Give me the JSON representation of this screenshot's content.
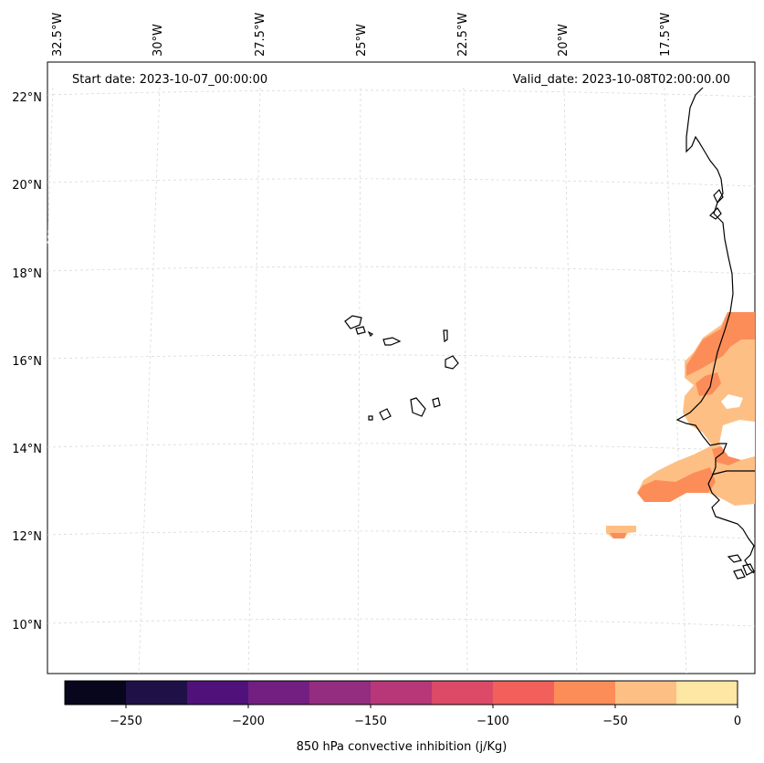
{
  "map": {
    "start_date_text": "Start date: 2023-10-07_00:00:00",
    "valid_date_text": "Valid_date: 2023-10-08T02:00:00.00",
    "lon_labels": [
      "32.5°W",
      "30°W",
      "27.5°W",
      "25°W",
      "22.5°W",
      "20°W",
      "17.5°W"
    ],
    "lat_labels": [
      "22°N",
      "20°N",
      "18°N",
      "16°N",
      "14°N",
      "12°N",
      "10°N"
    ],
    "gridlines": true,
    "coastline_color": "#000000",
    "gridline_color": "#d9d9d9"
  },
  "colorbar": {
    "title": "850 hPa convective inhibition (j/Kg)",
    "ticks": [
      "−250",
      "−200",
      "−150",
      "−100",
      "−50",
      "0"
    ],
    "levels": [
      -275,
      -250,
      -225,
      -200,
      -175,
      -150,
      -125,
      -100,
      -75,
      -50,
      -25,
      0
    ],
    "colors": [
      "#07061c",
      "#1f1147",
      "#4f127b",
      "#721f81",
      "#942c80",
      "#b73779",
      "#dd4a68",
      "#f2605c",
      "#fc8d59",
      "#febf84",
      "#fee6a5"
    ]
  }
}
